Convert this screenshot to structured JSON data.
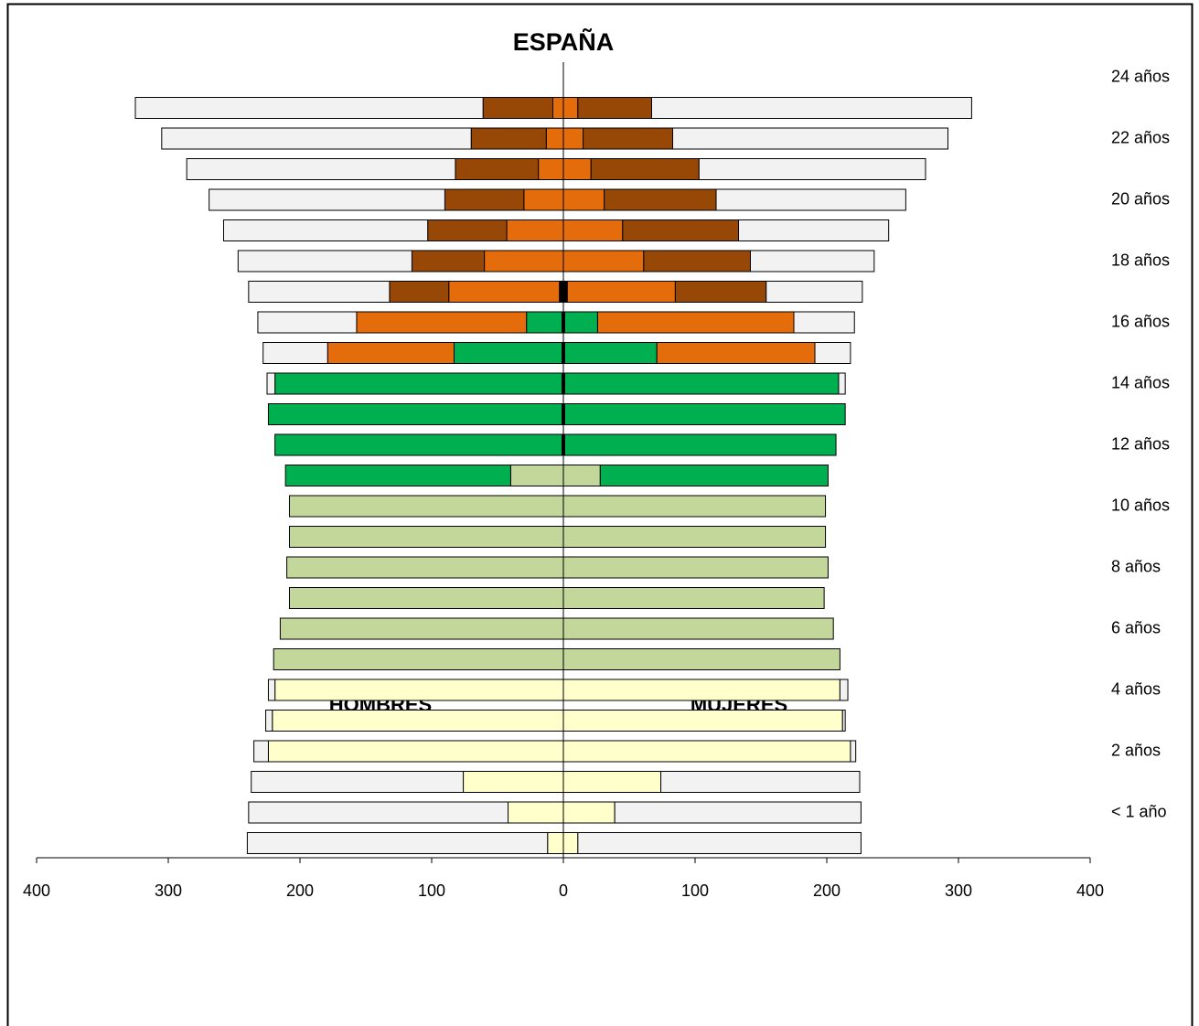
{
  "chart_data": {
    "type": "bar",
    "orientation": "horizontal",
    "stacked": true,
    "title": "ESPAÑA",
    "annotations": [
      "HOMBRES",
      "MUJERES"
    ],
    "categories": [
      null,
      "< 1 año",
      null,
      "2 años",
      null,
      "4 años",
      null,
      "6 años",
      null,
      "8 años",
      null,
      "10 años",
      null,
      "12 años",
      null,
      "14 años",
      null,
      "16 años",
      null,
      "18 años",
      null,
      "20 años",
      null,
      "22 años",
      null,
      "24 años"
    ],
    "xlim": [
      -400,
      400
    ],
    "xticks": [
      {
        "value": -400,
        "label": "400"
      },
      {
        "value": -300,
        "label": "300"
      },
      {
        "value": -200,
        "label": "200"
      },
      {
        "value": -100,
        "label": "100"
      },
      0,
      100,
      200,
      300,
      400
    ],
    "series": [
      {
        "color": "#ffffcc",
        "values": [
          -12,
          -42,
          -76,
          -224,
          -221,
          -219,
          null,
          null,
          null,
          null,
          null,
          null,
          null,
          null,
          null,
          null,
          null,
          null,
          null,
          null,
          null,
          null,
          null,
          null,
          null,
          null
        ]
      },
      {
        "color": "#ffffcc",
        "values": [
          11,
          39,
          74,
          218,
          212,
          210,
          null,
          null,
          null,
          null,
          null,
          null,
          null,
          null,
          null,
          null,
          null,
          null,
          null,
          null,
          null,
          null,
          null,
          null,
          null,
          null
        ]
      },
      {
        "color": "#c4d79b",
        "values": [
          null,
          null,
          null,
          null,
          null,
          null,
          -220,
          -215,
          -208,
          -210,
          -208,
          -208,
          -40,
          null,
          null,
          null,
          null,
          null,
          null,
          null,
          null,
          null,
          null,
          null,
          null,
          null
        ]
      },
      {
        "color": "#c4d79b",
        "values": [
          null,
          null,
          null,
          null,
          null,
          null,
          210,
          205,
          198,
          201,
          199,
          199,
          28,
          null,
          null,
          null,
          null,
          null,
          null,
          null,
          null,
          null,
          null,
          null,
          null,
          null
        ]
      },
      {
        "color": "#000000",
        "values": [
          null,
          null,
          null,
          null,
          null,
          null,
          null,
          null,
          null,
          null,
          null,
          null,
          null,
          -1,
          -1,
          -1,
          -1,
          -1,
          -3,
          null,
          null,
          null,
          null,
          null,
          null,
          null
        ]
      },
      {
        "color": "#000000",
        "values": [
          null,
          null,
          null,
          null,
          null,
          null,
          null,
          null,
          null,
          null,
          null,
          null,
          null,
          1,
          1,
          1,
          1,
          1,
          3,
          null,
          null,
          null,
          null,
          null,
          null,
          null
        ]
      },
      {
        "color": "#00b050",
        "values": [
          null,
          null,
          null,
          null,
          null,
          null,
          null,
          null,
          null,
          null,
          null,
          null,
          -171,
          -218,
          -223,
          -218,
          -82,
          -27,
          null,
          null,
          null,
          null,
          null,
          null,
          null,
          null
        ]
      },
      {
        "color": "#00b050",
        "values": [
          null,
          null,
          null,
          null,
          null,
          null,
          null,
          null,
          null,
          null,
          null,
          null,
          173,
          206,
          213,
          208,
          70,
          25,
          null,
          null,
          null,
          null,
          null,
          null,
          null,
          null
        ]
      },
      {
        "color": "#e46c0a",
        "values": [
          null,
          null,
          null,
          null,
          null,
          null,
          null,
          null,
          null,
          null,
          null,
          null,
          null,
          null,
          null,
          null,
          -96,
          -129,
          -84,
          -60,
          -43,
          -30,
          -19,
          -13,
          -8,
          null
        ]
      },
      {
        "color": "#e46c0a",
        "values": [
          null,
          null,
          null,
          null,
          null,
          null,
          null,
          null,
          null,
          null,
          null,
          null,
          null,
          null,
          null,
          null,
          120,
          149,
          82,
          61,
          45,
          31,
          21,
          15,
          11,
          null
        ]
      },
      {
        "color": "#974706",
        "values": [
          null,
          null,
          null,
          null,
          null,
          null,
          null,
          null,
          null,
          null,
          null,
          null,
          null,
          null,
          null,
          null,
          null,
          null,
          -45,
          -55,
          -60,
          -60,
          -63,
          -57,
          -53,
          null
        ]
      },
      {
        "color": "#974706",
        "values": [
          null,
          null,
          null,
          null,
          null,
          null,
          null,
          null,
          null,
          null,
          null,
          null,
          null,
          null,
          null,
          null,
          null,
          null,
          69,
          81,
          88,
          85,
          82,
          68,
          56,
          null
        ]
      },
      {
        "color": "#f2f2f2",
        "values": [
          -228,
          -197,
          -161,
          -11,
          -5,
          -5,
          null,
          null,
          null,
          null,
          null,
          null,
          null,
          null,
          null,
          -6,
          -49,
          -75,
          -107,
          -132,
          -155,
          -179,
          -204,
          -235,
          -264,
          null
        ]
      },
      {
        "color": "#f2f2f2",
        "values": [
          215,
          187,
          151,
          4,
          2,
          6,
          null,
          null,
          null,
          null,
          null,
          null,
          null,
          null,
          null,
          5,
          27,
          46,
          73,
          94,
          114,
          144,
          172,
          209,
          243,
          null
        ]
      }
    ]
  }
}
